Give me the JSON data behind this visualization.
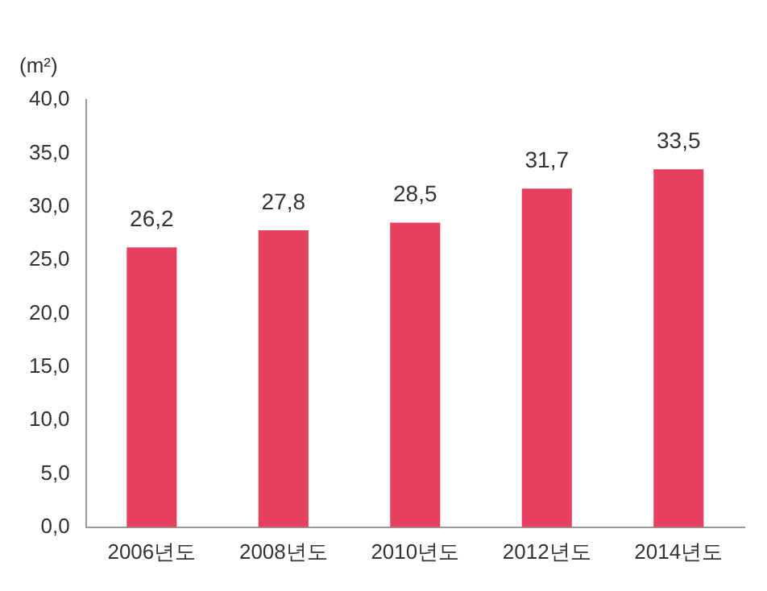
{
  "chart_data": {
    "type": "bar",
    "ylabel": "(m²)",
    "categories": [
      "2006년도",
      "2008년도",
      "2010년도",
      "2012년도",
      "2014년도"
    ],
    "values": [
      26.2,
      27.8,
      28.5,
      31.7,
      33.5
    ],
    "value_labels": [
      "26,2",
      "27,8",
      "28,5",
      "31,7",
      "33,5"
    ],
    "color": "#e5415f",
    "ylim": [
      0,
      40
    ],
    "yticks": [
      {
        "value": 0,
        "label": "0,0"
      },
      {
        "value": 5,
        "label": "5,0"
      },
      {
        "value": 10,
        "label": "10,0"
      },
      {
        "value": 15,
        "label": "15,0"
      },
      {
        "value": 20,
        "label": "20,0"
      },
      {
        "value": 25,
        "label": "25,0"
      },
      {
        "value": 30,
        "label": "30,0"
      },
      {
        "value": 35,
        "label": "35,0"
      },
      {
        "value": 40,
        "label": "40,0"
      }
    ],
    "grid": false,
    "legend": false
  }
}
